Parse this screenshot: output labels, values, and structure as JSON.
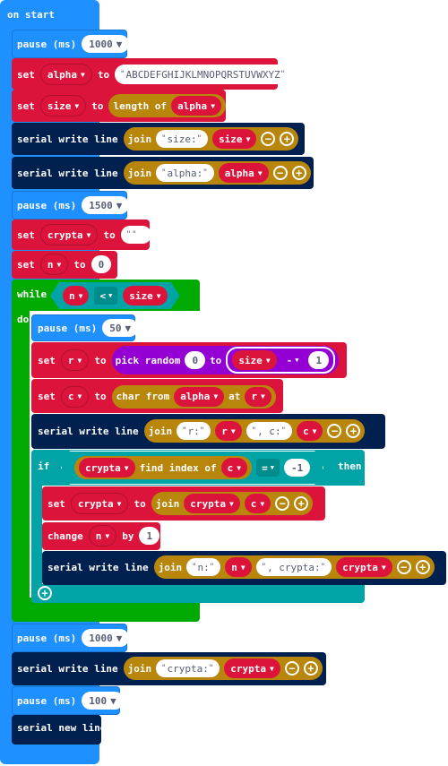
{
  "colors": {
    "events": "#1e90ff",
    "basic": "#1e90ff",
    "variables": "#dc143c",
    "text": "#b8860b",
    "serial": "#002050",
    "loops": "#00aa00",
    "logic": "#00a4a6",
    "math": "#9400d3"
  },
  "blocks": {
    "on_start": "on start",
    "pause_label": "pause (ms)",
    "pause1": "1000",
    "set_label": "set",
    "to_label": "to",
    "alpha": "alpha",
    "alphabet": "ABCDEFGHIJKLMNOPQRSTUVWXYZ",
    "size": "size",
    "length_of": "length of",
    "serial_write_line": "serial write line",
    "join": "join",
    "size_str": "size:",
    "alpha_str": "alpha:",
    "pause2": "1500",
    "crypta": "crypta",
    "empty_str": "",
    "n": "n",
    "zero": "0",
    "while": "while",
    "lt": "<",
    "do": "do",
    "pause3": "50",
    "r": "r",
    "pick_random": "pick random",
    "rand_min": "0",
    "minus": "-",
    "one": "1",
    "c": "c",
    "char_from": "char from",
    "at": "at",
    "r_str": "r:",
    "c_str": ", c:",
    "if": "if",
    "find_index_of": "find index of",
    "eq": "=",
    "neg_one": "-1",
    "then": "then",
    "change": "change",
    "by": "by",
    "n_str": "n:",
    "crypta_str": ", crypta:",
    "crypta_str2": "crypta:",
    "pause4": "1000",
    "pause5": "100",
    "serial_new_line": "serial new line",
    "plus": "+",
    "minus_btn": "−",
    "caret": "▼"
  }
}
